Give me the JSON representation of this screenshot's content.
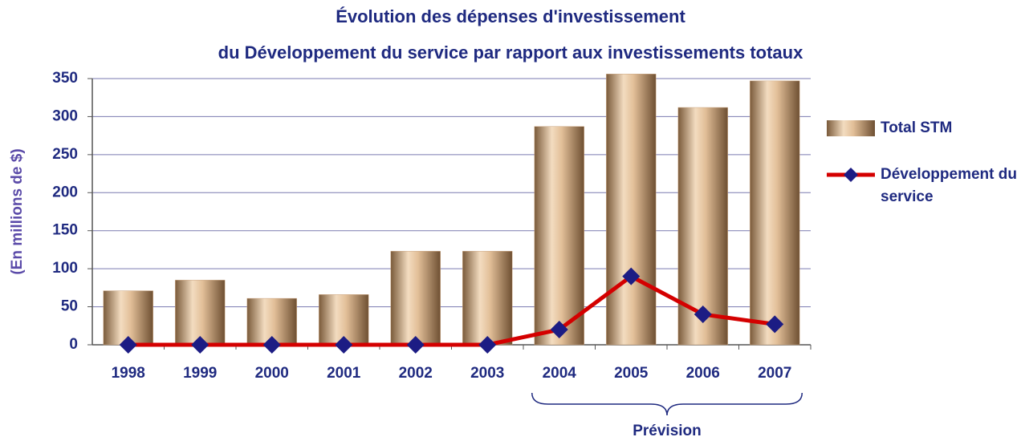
{
  "chart_data": {
    "type": "bar",
    "title": [
      "Évolution des dépenses d'investissement",
      "du Développement du service par rapport aux investissements totaux"
    ],
    "y_label": "(En millions de $)",
    "categories": [
      "1998",
      "1999",
      "2000",
      "2001",
      "2002",
      "2003",
      "2004",
      "2005",
      "2006",
      "2007"
    ],
    "series": [
      {
        "name": "Total STM",
        "type": "bar",
        "color": "#c9a27c",
        "values": [
          71,
          85,
          61,
          66,
          123,
          123,
          287,
          356,
          312,
          347
        ]
      },
      {
        "name": "Développement du service",
        "type": "line",
        "color": "#d40000",
        "marker_color": "#1c1c84",
        "values": [
          0,
          0,
          0,
          0,
          0,
          0,
          20,
          90,
          40,
          27
        ]
      }
    ],
    "ylim": [
      0,
      350
    ],
    "yticks": [
      0,
      50,
      100,
      150,
      200,
      250,
      300,
      350
    ],
    "grid": true,
    "legend": "right",
    "annotations": [
      {
        "text": "Prévision",
        "categories": [
          "2004",
          "2007"
        ]
      }
    ]
  }
}
